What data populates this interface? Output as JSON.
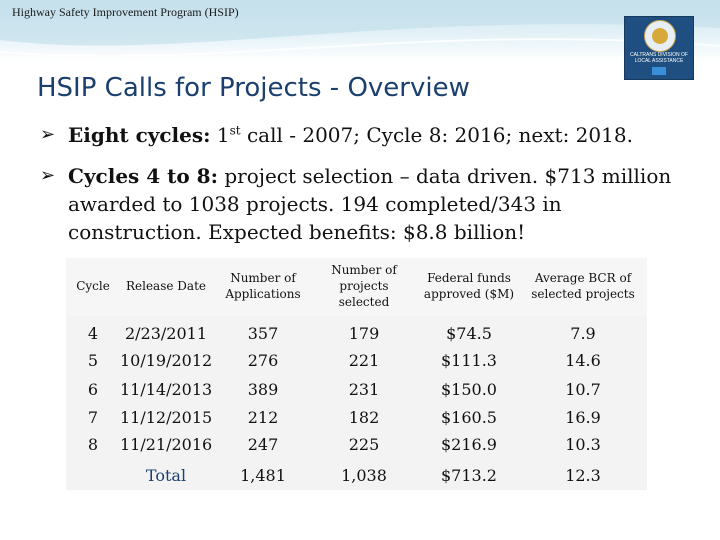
{
  "header": {
    "program_title": "Highway Safety Improvement Program (HSIP)"
  },
  "logo": {
    "text": "CALTRANS DIVISION OF\nLOCAL ASSISTANCE"
  },
  "slide": {
    "title": "HSIP Calls for Projects - Overview",
    "bullets": [
      {
        "bold": "Eight cycles:",
        "pre_sup": " 1",
        "sup": "st",
        "rest": " call - 2007; Cycle 8: 2016; next: 2018."
      },
      {
        "bold": "Cycles 4 to 8:",
        "rest": " project selection – data driven. $713 million awarded to 1038 projects. 194 completed/343 in construction. Expected benefits: $8.8 billion!"
      }
    ]
  },
  "table": {
    "headers": [
      "Cycle",
      "Release Date",
      "Number of\nApplications",
      "Number of\nprojects\nselected",
      "Federal funds\napproved ($M)",
      "Average BCR of\nselected projects"
    ],
    "rows": [
      [
        "4",
        "2/23/2011",
        "357",
        "179",
        "$74.5",
        "7.9"
      ],
      [
        "5",
        "10/19/2012",
        "276",
        "221",
        "$111.3",
        "14.6"
      ],
      [
        "6",
        "11/14/2013",
        "389",
        "231",
        "$150.0",
        "10.7"
      ],
      [
        "7",
        "11/12/2015",
        "212",
        "182",
        "$160.5",
        "16.9"
      ],
      [
        "8",
        "11/21/2016",
        "247",
        "225",
        "$216.9",
        "10.3"
      ]
    ],
    "total": [
      "",
      "Total",
      "1,481",
      "1,038",
      "$713.2",
      "12.3"
    ]
  }
}
